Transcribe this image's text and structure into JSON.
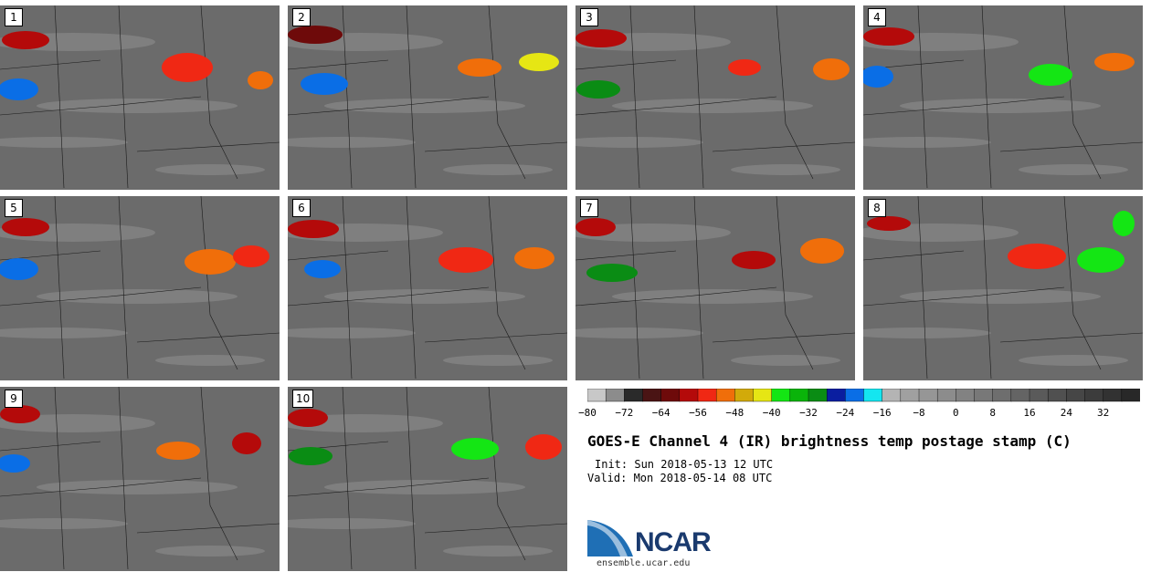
{
  "panels": [
    {
      "label": "1"
    },
    {
      "label": "2"
    },
    {
      "label": "3"
    },
    {
      "label": "4"
    },
    {
      "label": "5"
    },
    {
      "label": "6"
    },
    {
      "label": "7"
    },
    {
      "label": "8"
    },
    {
      "label": "9"
    },
    {
      "label": "10"
    }
  ],
  "colorbar": {
    "colors": [
      "#c8c8c8",
      "#8c8c8c",
      "#2a2a2a",
      "#4a1414",
      "#6e0a0a",
      "#b40a0a",
      "#f02814",
      "#f06e0a",
      "#d2aa0a",
      "#e6e614",
      "#14e614",
      "#0ab40a",
      "#0a8c14",
      "#0a1ea0",
      "#0a6ee6",
      "#14e6f0",
      "#b4b4b4",
      "#a0a0a0",
      "#969696",
      "#8c8c8c",
      "#828282",
      "#787878",
      "#6e6e6e",
      "#646464",
      "#5a5a5a",
      "#505050",
      "#464646",
      "#3c3c3c",
      "#323232",
      "#282828"
    ],
    "ticks": [
      "−80",
      "−72",
      "−64",
      "−56",
      "−48",
      "−40",
      "−32",
      "−24",
      "−16",
      "−8",
      "0",
      "8",
      "16",
      "24",
      "32"
    ]
  },
  "title": "GOES-E Channel 4 (IR) brightness temp postage stamp (C)",
  "init": "Init: Sun 2018-05-13 12 UTC",
  "valid": "Valid: Mon 2018-05-14 08 UTC",
  "logo": {
    "text": "NCAR",
    "url": "ensemble.ucar.edu"
  }
}
